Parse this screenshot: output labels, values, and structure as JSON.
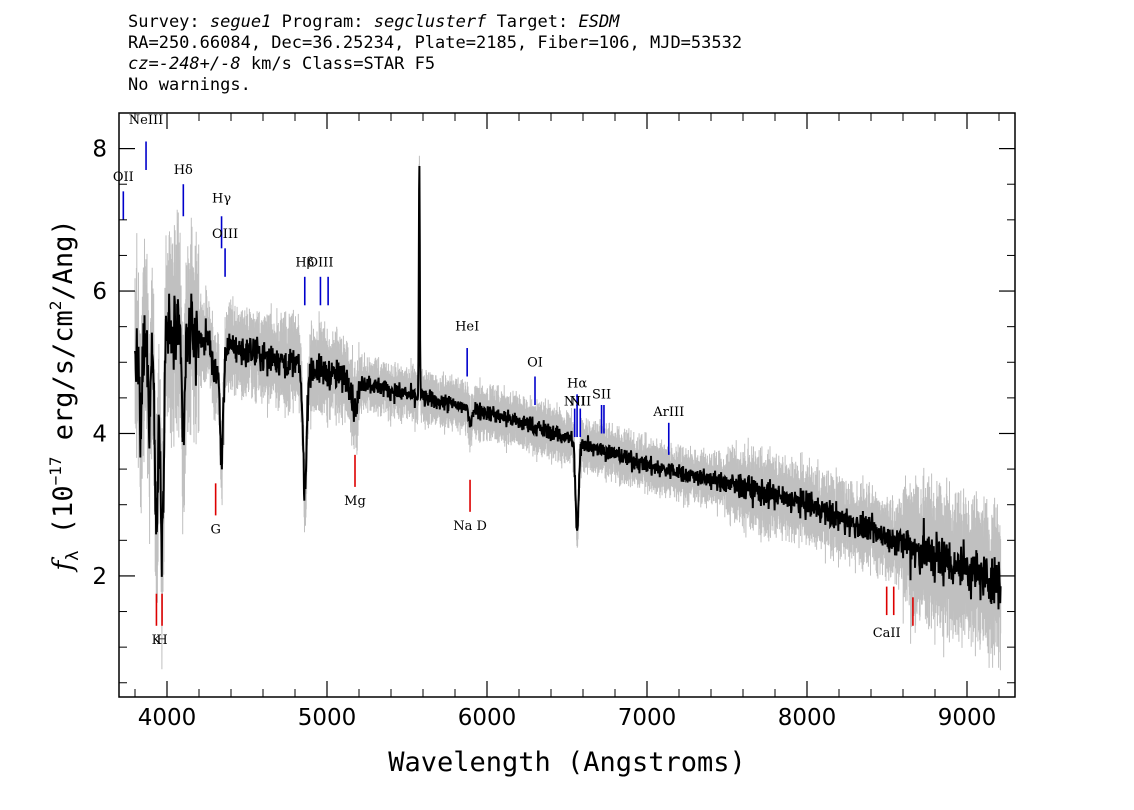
{
  "header": {
    "survey_label": "Survey:",
    "survey": "segue1",
    "program_label": "Program:",
    "program": "segclusterf",
    "target_label": "Target:",
    "target": "ESDM",
    "line2": "RA=250.66084, Dec=36.25234, Plate=2185, Fiber=106, MJD=53532",
    "cz_label": "cz=",
    "cz_value": "-248+/-8",
    "cz_rest": "km/s Class=STAR F5",
    "line4": "No warnings."
  },
  "chart_data": {
    "type": "line",
    "xlabel": "Wavelength (Angstroms)",
    "ylabel": "f_λ (10^-17 erg/s/cm²/Ang)",
    "ylabel_parts": {
      "f": "f",
      "lambda": "λ",
      "pre": " (10",
      "exp": "−17",
      "mid": " erg/s/cm",
      "sq": "2",
      "post": "/Ang)"
    },
    "xlim": [
      3700,
      9300
    ],
    "ylim": [
      0.3,
      8.5
    ],
    "x_ticks": [
      4000,
      5000,
      6000,
      7000,
      8000,
      9000
    ],
    "x_tick_labels": [
      "4000",
      "5000",
      "6000",
      "7000",
      "8000",
      "9000"
    ],
    "x_minor_step": 200,
    "y_ticks": [
      2,
      4,
      6,
      8
    ],
    "y_tick_labels": [
      "2",
      "4",
      "6",
      "8"
    ],
    "y_minor_step": 0.5,
    "grid": false,
    "series": [
      {
        "role": "spectrum",
        "color": "#000000",
        "continuum_points": [
          [
            3800,
            5.0
          ],
          [
            4000,
            5.45
          ],
          [
            4500,
            5.15
          ],
          [
            5000,
            4.85
          ],
          [
            5500,
            4.55
          ],
          [
            6000,
            4.3
          ],
          [
            6500,
            3.95
          ],
          [
            7000,
            3.55
          ],
          [
            7500,
            3.3
          ],
          [
            8000,
            3.0
          ],
          [
            8500,
            2.55
          ],
          [
            9000,
            2.1
          ],
          [
            9210,
            1.9
          ]
        ],
        "absorption_features": [
          {
            "x": 3934,
            "depth": 2.6,
            "width": 10
          },
          {
            "x": 3969,
            "depth": 2.8,
            "width": 10
          },
          {
            "x": 3835,
            "depth": 1.3,
            "width": 6
          },
          {
            "x": 3889,
            "depth": 1.0,
            "width": 6
          },
          {
            "x": 4102,
            "depth": 1.3,
            "width": 10
          },
          {
            "x": 4300,
            "depth": 0.5,
            "width": 14
          },
          {
            "x": 4341,
            "depth": 1.6,
            "width": 11
          },
          {
            "x": 4861,
            "depth": 1.7,
            "width": 12
          },
          {
            "x": 5175,
            "depth": 0.4,
            "width": 18
          },
          {
            "x": 5893,
            "depth": 0.2,
            "width": 10
          },
          {
            "x": 6563,
            "depth": 1.3,
            "width": 10
          }
        ],
        "emission_features": [
          {
            "x": 5577,
            "height": 3.3,
            "width": 3
          }
        ]
      },
      {
        "role": "noise-envelope",
        "color": "#c0c0c0"
      }
    ],
    "emission_lines": [
      {
        "label": "NeIII",
        "x": 3869,
        "y_top": 8.1,
        "y_bot": 7.7,
        "label_y": 8.4
      },
      {
        "label": "OII",
        "x": 3727,
        "y_top": 7.4,
        "y_bot": 7.0,
        "label_y": 7.6
      },
      {
        "label": "Hδ",
        "x": 4102,
        "y_top": 7.5,
        "y_bot": 7.05,
        "label_y": 7.7
      },
      {
        "label": "Hγ",
        "x": 4341,
        "y_top": 7.05,
        "y_bot": 6.6,
        "label_y": 7.3
      },
      {
        "label": "OIII",
        "x": 4363,
        "y_top": 6.6,
        "y_bot": 6.2,
        "label_y": 6.8
      },
      {
        "label": "Hβ",
        "x": 4861,
        "y_top": 6.2,
        "y_bot": 5.8,
        "label_y": 6.4
      },
      {
        "label": "OIII",
        "x": 4959,
        "y_top": 6.2,
        "y_bot": 5.8,
        "label_y": 6.4
      },
      {
        "label": "",
        "x": 5007,
        "y_top": 6.2,
        "y_bot": 5.8,
        "label_y": 6.4
      },
      {
        "label": "HeI",
        "x": 5876,
        "y_top": 5.2,
        "y_bot": 4.8,
        "label_y": 5.5
      },
      {
        "label": "OI",
        "x": 6300,
        "y_top": 4.8,
        "y_bot": 4.4,
        "label_y": 5.0
      },
      {
        "label": "NII",
        "x": 6548,
        "y_top": 4.35,
        "y_bot": 3.95,
        "label_y": 4.45
      },
      {
        "label": "Hα",
        "x": 6563,
        "y_top": 4.55,
        "y_bot": 3.95,
        "label_y": 4.7
      },
      {
        "label": "NII",
        "x": 6583,
        "y_top": 4.35,
        "y_bot": 3.95,
        "label_y": 4.45
      },
      {
        "label": "SII",
        "x": 6716,
        "y_top": 4.4,
        "y_bot": 4.0,
        "label_y": 4.55
      },
      {
        "label": "",
        "x": 6731,
        "y_top": 4.4,
        "y_bot": 4.0,
        "label_y": 4.55
      },
      {
        "label": "ArIII",
        "x": 7136,
        "y_top": 4.15,
        "y_bot": 3.7,
        "label_y": 4.3
      }
    ],
    "absorption_lines": [
      {
        "label": "K",
        "x": 3934,
        "y_top": 1.75,
        "y_bot": 1.3,
        "label_y": 1.1
      },
      {
        "label": "H",
        "x": 3969,
        "y_top": 1.75,
        "y_bot": 1.3,
        "label_y": 1.1
      },
      {
        "label": "G",
        "x": 4304,
        "y_top": 3.3,
        "y_bot": 2.85,
        "label_y": 2.65
      },
      {
        "label": "Mg",
        "x": 5175,
        "y_top": 3.7,
        "y_bot": 3.25,
        "label_y": 3.05
      },
      {
        "label": "Na D",
        "x": 5894,
        "y_top": 3.35,
        "y_bot": 2.9,
        "label_y": 2.7
      },
      {
        "label": "CaII",
        "x": 8498,
        "y_top": 1.85,
        "y_bot": 1.45,
        "label_y": 1.2
      },
      {
        "label": "",
        "x": 8542,
        "y_top": 1.85,
        "y_bot": 1.45,
        "label_y": 1.2
      },
      {
        "label": "",
        "x": 8662,
        "y_top": 1.7,
        "y_bot": 1.3,
        "label_y": 1.2
      }
    ],
    "colors": {
      "emission": "#0000cc",
      "absorption": "#dd0000",
      "noise": "#c0c0c0",
      "spectrum": "#000000"
    }
  }
}
